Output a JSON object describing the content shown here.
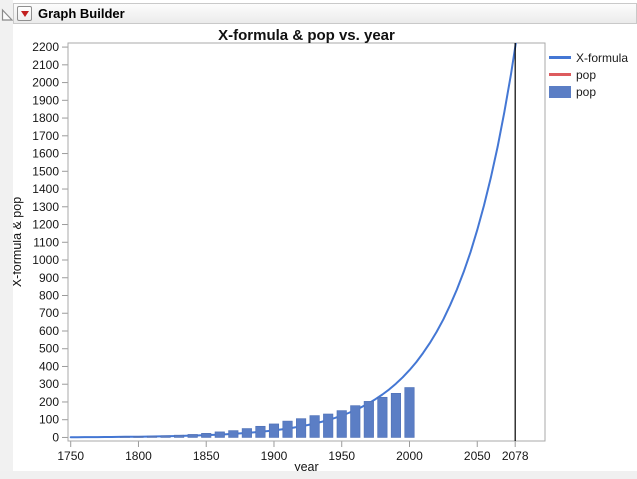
{
  "window": {
    "header": {
      "title": "Graph Builder",
      "icons": {
        "disclosure": "open-right-triangle",
        "menu": "red-triangle-down"
      }
    }
  },
  "chart_data": {
    "type": "combo",
    "title": "X-formula & pop vs. year",
    "xlabel": "year",
    "ylabel": "X-formula & pop",
    "grid": false,
    "legend_position": "right",
    "xlim": [
      1748,
      2100
    ],
    "ylim": [
      -20,
      2223
    ],
    "x_ticks": [
      1750,
      1800,
      1850,
      1900,
      1950,
      2000,
      2050,
      2078
    ],
    "y_ticks": [
      0,
      100,
      200,
      300,
      400,
      500,
      600,
      700,
      800,
      900,
      1000,
      1100,
      1200,
      1300,
      1400,
      1500,
      1600,
      1700,
      1800,
      1900,
      2000,
      2100,
      2200
    ],
    "reference_line": {
      "x": 2078,
      "color": "#000000"
    },
    "series": [
      {
        "name": "X-formula",
        "type": "line",
        "color": "#4477d4",
        "rendered": true,
        "x": [
          1750,
          1755,
          1760,
          1765,
          1770,
          1775,
          1780,
          1785,
          1790,
          1795,
          1800,
          1805,
          1810,
          1815,
          1820,
          1825,
          1830,
          1835,
          1840,
          1845,
          1850,
          1855,
          1860,
          1865,
          1870,
          1875,
          1880,
          1885,
          1890,
          1895,
          1900,
          1905,
          1910,
          1915,
          1920,
          1925,
          1930,
          1935,
          1940,
          1945,
          1950,
          1955,
          1960,
          1965,
          1970,
          1975,
          1980,
          1985,
          1990,
          1995,
          2000,
          2005,
          2010,
          2015,
          2020,
          2025,
          2030,
          2035,
          2040,
          2045,
          2050,
          2055,
          2060,
          2065,
          2070,
          2075,
          2078,
          2080
        ],
        "y": [
          1.4,
          1.5,
          1.7,
          1.9,
          2.1,
          2.4,
          2.7,
          3.0,
          3.4,
          3.8,
          4.2,
          4.7,
          5.3,
          5.9,
          6.6,
          7.4,
          8.3,
          9.3,
          10.4,
          11.6,
          13.0,
          14.5,
          16.3,
          18.2,
          20.4,
          22.8,
          25.5,
          28.6,
          32.0,
          35.8,
          40.0,
          44.8,
          50.1,
          56.1,
          62.7,
          70.2,
          78.6,
          87.9,
          98.4,
          110.1,
          123.2,
          137.9,
          154.3,
          172.7,
          193.2,
          216.2,
          242.0,
          270.8,
          303.0,
          339.1,
          379.5,
          424.6,
          475.2,
          531.7,
          595.0,
          665.9,
          745.1,
          833.8,
          933.1,
          1044.2,
          1168.5,
          1307.5,
          1463.2,
          1637.4,
          1832.3,
          2050.4,
          2200.0,
          2301.0
        ]
      },
      {
        "name": "pop",
        "type": "line",
        "color": "#dd5b5e",
        "rendered": false,
        "x": [
          1790,
          1800,
          1810,
          1820,
          1830,
          1840,
          1850,
          1860,
          1870,
          1880,
          1890,
          1900,
          1910,
          1920,
          1930,
          1940,
          1950,
          1960,
          1970,
          1980,
          1990,
          2000
        ],
        "y": [
          3.9,
          5.3,
          7.2,
          9.6,
          12.9,
          17.1,
          23.2,
          31.4,
          38.6,
          50.2,
          63.0,
          76.2,
          92.2,
          106.0,
          123.2,
          132.2,
          151.3,
          179.3,
          203.3,
          226.5,
          248.7,
          281.4
        ]
      },
      {
        "name": "pop",
        "type": "bar",
        "color": "#5b7ec5",
        "rendered": true,
        "x": [
          1790,
          1800,
          1810,
          1820,
          1830,
          1840,
          1850,
          1860,
          1870,
          1880,
          1890,
          1900,
          1910,
          1920,
          1930,
          1940,
          1950,
          1960,
          1970,
          1980,
          1990,
          2000
        ],
        "y": [
          3.9,
          5.3,
          7.2,
          9.6,
          12.9,
          17.1,
          23.2,
          31.4,
          38.6,
          50.2,
          63.0,
          76.2,
          92.2,
          106.0,
          123.2,
          132.2,
          151.3,
          179.3,
          203.3,
          226.5,
          248.7,
          281.4
        ]
      }
    ],
    "legend": {
      "entries": [
        {
          "label": "X-formula",
          "swatch": "line",
          "color": "#4477d4"
        },
        {
          "label": "pop",
          "swatch": "line",
          "color": "#dd5b5e"
        },
        {
          "label": "pop",
          "swatch": "bar",
          "color": "#5b7ec5"
        }
      ]
    }
  }
}
